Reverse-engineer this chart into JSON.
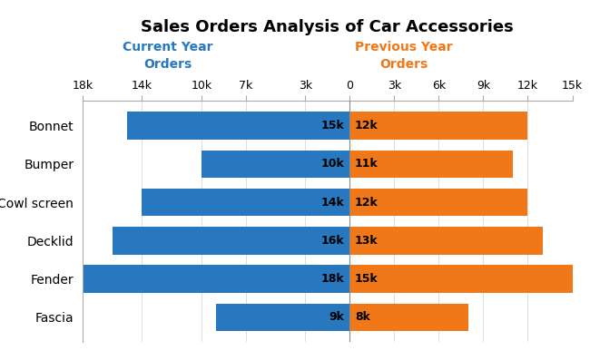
{
  "title": "Sales Orders Analysis of Car Accessories",
  "categories": [
    "Bonnet",
    "Bumper",
    "Cowl screen",
    "Decklid",
    "Fender",
    "Fascia"
  ],
  "current_year": [
    15000,
    10000,
    14000,
    16000,
    18000,
    9000
  ],
  "previous_year": [
    12000,
    11000,
    12000,
    13000,
    15000,
    8000
  ],
  "current_labels": [
    "15k",
    "10k",
    "14k",
    "16k",
    "18k",
    "9k"
  ],
  "previous_labels": [
    "12k",
    "11k",
    "12k",
    "13k",
    "15k",
    "8k"
  ],
  "color_current": "#2878c0",
  "color_previous": "#f07818",
  "legend_current": "Current Year\nOrders",
  "legend_previous": "Previous Year\nOrders",
  "legend_current_color": "#2878c0",
  "legend_previous_color": "#f07818",
  "xlim": [
    -18000,
    15000
  ],
  "xticks": [
    -18000,
    -14000,
    -10000,
    -7000,
    -3000,
    0,
    3000,
    6000,
    9000,
    12000,
    15000
  ],
  "xticklabels": [
    "18k",
    "14k",
    "10k",
    "7k",
    "3k",
    "0",
    "3k",
    "6k",
    "9k",
    "12k",
    "15k"
  ],
  "bar_height": 0.72,
  "title_fontsize": 13,
  "label_fontsize": 9,
  "ytick_fontsize": 10,
  "xtick_fontsize": 9
}
